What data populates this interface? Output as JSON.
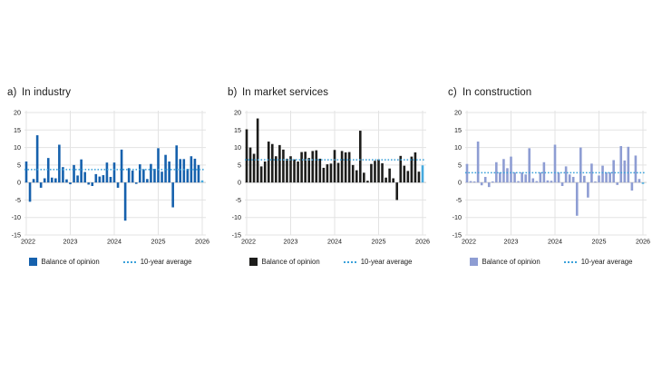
{
  "figure": {
    "background": "#ffffff",
    "grid_color": "#e3e3e3",
    "zero_line_color": "#c9c9c9",
    "text_color": "#1a1a1a",
    "average_line_color": "#3ba1da",
    "forecast_bar_color": "#45a9de"
  },
  "chart_data": [
    {
      "type": "bar",
      "label_prefix": "a)",
      "title": "In industry",
      "bar_color": "#1661ad",
      "x_start": "2022-01",
      "frequency": "monthly",
      "x_tick_labels": [
        "2022",
        "2023",
        "2024",
        "2025",
        "2026"
      ],
      "ylim": [
        -15,
        20
      ],
      "ytick_step": 5,
      "grid": true,
      "legend_position": "bottom",
      "ten_year_average": 3.7,
      "highlight_last": true,
      "values": [
        6.0,
        -5.5,
        1.0,
        13.5,
        -1.5,
        1.2,
        7.0,
        1.4,
        1.2,
        10.8,
        4.4,
        0.9,
        -0.5,
        5.0,
        2.0,
        6.6,
        3.0,
        -0.6,
        -1.0,
        2.4,
        1.7,
        2.1,
        5.7,
        1.6,
        5.7,
        -1.5,
        9.4,
        -10.9,
        4.1,
        3.4,
        -0.4,
        5.2,
        3.8,
        1.0,
        5.3,
        3.9,
        9.8,
        3.1,
        7.9,
        6.0,
        -7.1,
        10.6,
        6.7,
        6.7,
        3.9,
        7.5,
        6.8,
        5.0,
        0.6
      ],
      "legend": {
        "balance": "Balance of opinion",
        "average": "10-year average"
      }
    },
    {
      "type": "bar",
      "label_prefix": "b)",
      "title": "In market services",
      "bar_color": "#1d1d1b",
      "x_start": "2022-01",
      "frequency": "monthly",
      "x_tick_labels": [
        "2022",
        "2023",
        "2024",
        "2025",
        "2026"
      ],
      "ylim": [
        -15,
        20
      ],
      "ytick_step": 5,
      "grid": true,
      "legend_position": "bottom",
      "ten_year_average": 6.5,
      "highlight_last": true,
      "values": [
        15.2,
        10.0,
        8.2,
        18.3,
        4.6,
        6.0,
        11.7,
        11.0,
        7.5,
        10.7,
        9.4,
        6.8,
        7.5,
        6.6,
        6.0,
        8.7,
        8.8,
        7.0,
        9.0,
        9.2,
        6.8,
        4.2,
        5.2,
        5.4,
        9.3,
        5.6,
        9.0,
        8.6,
        8.7,
        5.0,
        3.5,
        14.8,
        2.8,
        0.5,
        5.3,
        6.2,
        6.6,
        5.5,
        1.4,
        4.0,
        1.2,
        -5.0,
        7.6,
        4.8,
        3.3,
        7.4,
        8.6,
        3.1,
        4.9
      ],
      "legend": {
        "balance": "Balance of opinion",
        "average": "10-year average"
      }
    },
    {
      "type": "bar",
      "label_prefix": "c)",
      "title": "In construction",
      "bar_color": "#8e9dd3",
      "x_start": "2022-01",
      "frequency": "monthly",
      "x_tick_labels": [
        "2022",
        "2023",
        "2024",
        "2025",
        "2026"
      ],
      "ylim": [
        -15,
        20
      ],
      "ytick_step": 5,
      "grid": true,
      "legend_position": "bottom",
      "ten_year_average": 2.8,
      "highlight_last": true,
      "values": [
        5.3,
        0.4,
        0.3,
        11.7,
        -0.8,
        1.6,
        -1.3,
        0.3,
        5.8,
        2.9,
        6.7,
        4.1,
        7.4,
        2.9,
        0.4,
        2.9,
        2.3,
        9.8,
        1.2,
        0.4,
        2.9,
        5.8,
        0.6,
        0.5,
        10.8,
        2.9,
        -1.0,
        4.6,
        2.3,
        1.6,
        -9.5,
        10.0,
        1.9,
        -4.3,
        5.4,
        0.3,
        2.0,
        4.8,
        2.9,
        2.9,
        6.4,
        -0.7,
        10.4,
        6.3,
        10.2,
        -2.3,
        7.7,
        1.0,
        -0.4
      ],
      "legend": {
        "balance": "Balance of opinion",
        "average": "10-year average"
      }
    }
  ]
}
